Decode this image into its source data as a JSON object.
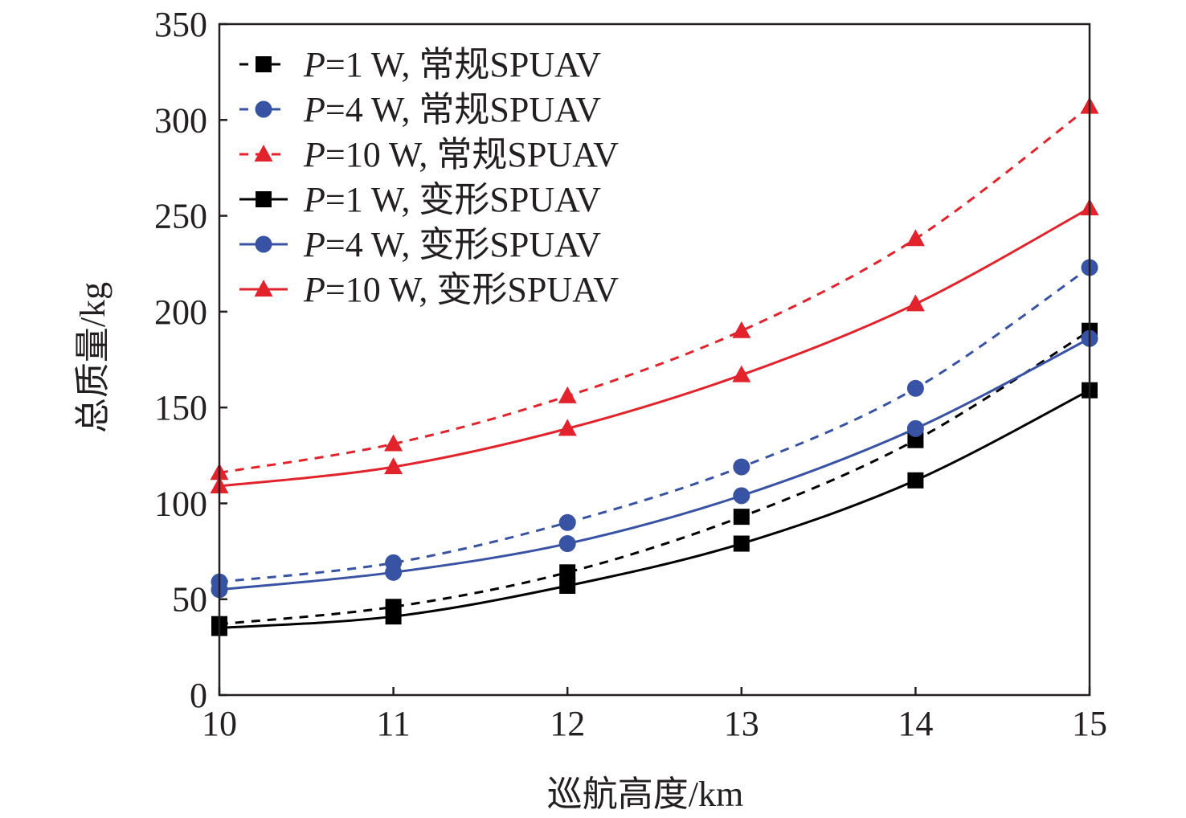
{
  "chart_data": {
    "type": "line",
    "xlabel": "巡航高度/km",
    "ylabel": "总质量/kg",
    "xlim": [
      10,
      15
    ],
    "ylim": [
      0,
      350
    ],
    "xticks": [
      10,
      11,
      12,
      13,
      14,
      15
    ],
    "yticks": [
      0,
      50,
      100,
      150,
      200,
      250,
      300,
      350
    ],
    "x": [
      10,
      11,
      12,
      13,
      14,
      15
    ],
    "grid": false,
    "legend_position": "top-left",
    "series": [
      {
        "name": "=1 W, 常规SPUAV",
        "p_symbol": "P",
        "color": "#000000",
        "dash": true,
        "marker": "square",
        "values": [
          37,
          46,
          64,
          93,
          133,
          190
        ]
      },
      {
        "name": "=4 W, 常规SPUAV",
        "p_symbol": "P",
        "color": "#3853a4",
        "dash": true,
        "marker": "circle",
        "values": [
          59,
          69,
          90,
          119,
          160,
          223
        ]
      },
      {
        "name": "=10 W, 常规SPUAV",
        "p_symbol": "P",
        "color": "#e3232b",
        "dash": true,
        "marker": "triangle",
        "values": [
          116,
          131,
          156,
          190,
          238,
          307
        ]
      },
      {
        "name": "=1 W, 变形SPUAV",
        "p_symbol": "P",
        "color": "#000000",
        "dash": false,
        "marker": "square",
        "values": [
          35,
          41,
          57,
          79,
          112,
          159
        ]
      },
      {
        "name": "=4 W, 变形SPUAV",
        "p_symbol": "P",
        "color": "#3853a4",
        "dash": false,
        "marker": "circle",
        "values": [
          55,
          64,
          79,
          104,
          139,
          186
        ]
      },
      {
        "name": "=10 W, 变形SPUAV",
        "p_symbol": "P",
        "color": "#e3232b",
        "dash": false,
        "marker": "triangle",
        "values": [
          109,
          119,
          139,
          167,
          204,
          254
        ]
      }
    ]
  }
}
